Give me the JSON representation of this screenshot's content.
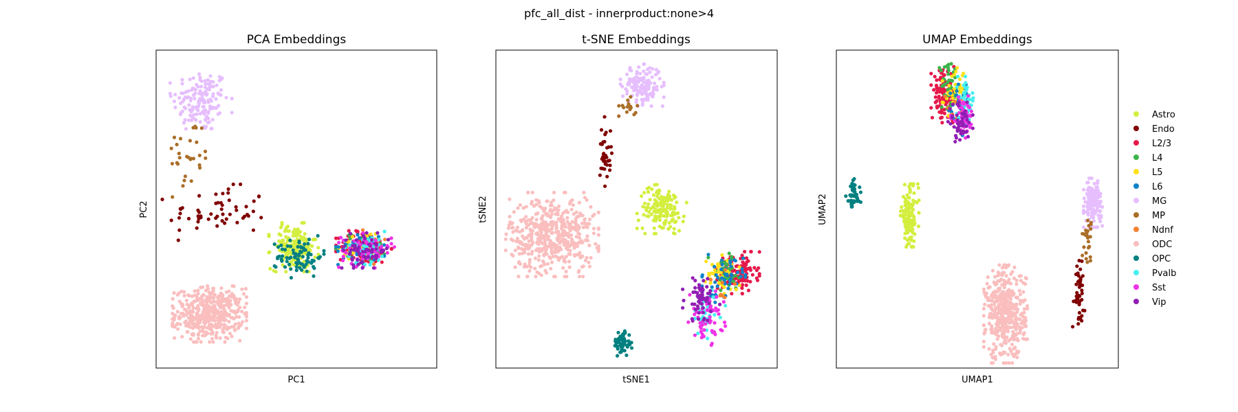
{
  "figure": {
    "suptitle": "pfc_all_dist - innerproduct:none>4"
  },
  "legend": {
    "placement": "right",
    "entries": [
      {
        "name": "Astro",
        "color": "#d4ee3f"
      },
      {
        "name": "Endo",
        "color": "#800000"
      },
      {
        "name": "L2/3",
        "color": "#e6194b"
      },
      {
        "name": "L4",
        "color": "#3cb44b"
      },
      {
        "name": "L5",
        "color": "#ffe119"
      },
      {
        "name": "L6",
        "color": "#0f82c8"
      },
      {
        "name": "MG",
        "color": "#e6befe"
      },
      {
        "name": "MP",
        "color": "#aa6e28"
      },
      {
        "name": "Ndnf",
        "color": "#f58231"
      },
      {
        "name": "ODC",
        "color": "#fabebe"
      },
      {
        "name": "OPC",
        "color": "#008080"
      },
      {
        "name": "Pvalb",
        "color": "#46f0f0"
      },
      {
        "name": "Sst",
        "color": "#f032e6"
      },
      {
        "name": "Vip",
        "color": "#911eb4"
      }
    ]
  },
  "chart_data": [
    {
      "type": "scatter",
      "title": "PCA Embeddings",
      "xlabel": "PC1",
      "ylabel": "PC2",
      "ticks": "none",
      "grid": false,
      "xlim": [
        0,
        100
      ],
      "ylim": [
        0,
        100
      ],
      "clusters": [
        {
          "label": "MG",
          "n": 150,
          "cx": 16,
          "cy": 84,
          "sx": 5,
          "sy": 5
        },
        {
          "label": "MP",
          "n": 30,
          "cx": 12,
          "cy": 67,
          "sx": 4,
          "sy": 6
        },
        {
          "label": "Endo",
          "n": 55,
          "cx": 22,
          "cy": 49,
          "sx": 9,
          "sy": 4
        },
        {
          "label": "ODC",
          "n": 450,
          "cx": 19,
          "cy": 17,
          "sx": 6,
          "sy": 4
        },
        {
          "label": "Astro",
          "n": 170,
          "cx": 49,
          "cy": 38,
          "sx": 4,
          "sy": 3.5
        },
        {
          "label": "OPC",
          "n": 80,
          "cx": 51,
          "cy": 35,
          "sx": 4,
          "sy": 3
        },
        {
          "label": "L2/3",
          "n": 130,
          "cx": 74,
          "cy": 38,
          "sx": 4.5,
          "sy": 2.5
        },
        {
          "label": "L4",
          "n": 30,
          "cx": 74,
          "cy": 38,
          "sx": 4.5,
          "sy": 2.5
        },
        {
          "label": "L5",
          "n": 30,
          "cx": 75,
          "cy": 38,
          "sx": 4.5,
          "sy": 2.5
        },
        {
          "label": "L6",
          "n": 50,
          "cx": 74,
          "cy": 38,
          "sx": 4.5,
          "sy": 2.5
        },
        {
          "label": "Ndnf",
          "n": 6,
          "cx": 76,
          "cy": 38,
          "sx": 4,
          "sy": 2.5
        },
        {
          "label": "Pvalb",
          "n": 40,
          "cx": 75,
          "cy": 38,
          "sx": 4.5,
          "sy": 2.5
        },
        {
          "label": "Sst",
          "n": 60,
          "cx": 75,
          "cy": 37,
          "sx": 4.5,
          "sy": 2.5
        },
        {
          "label": "Vip",
          "n": 60,
          "cx": 74,
          "cy": 37,
          "sx": 4.5,
          "sy": 2.5
        }
      ]
    },
    {
      "type": "scatter",
      "title": "t-SNE Embeddings",
      "xlabel": "tSNE1",
      "ylabel": "tSNE2",
      "ticks": "none",
      "grid": false,
      "xlim": [
        0,
        100
      ],
      "ylim": [
        0,
        100
      ],
      "clusters": [
        {
          "label": "MG",
          "n": 150,
          "cx": 52,
          "cy": 89,
          "sx": 3.5,
          "sy": 3
        },
        {
          "label": "MP",
          "n": 15,
          "cx": 47,
          "cy": 82,
          "sx": 1.5,
          "sy": 1.5
        },
        {
          "label": "Endo",
          "n": 35,
          "cx": 39,
          "cy": 68,
          "sx": 1,
          "sy": 5
        },
        {
          "label": "ODC",
          "n": 500,
          "cx": 20,
          "cy": 42,
          "sx": 7.5,
          "sy": 6
        },
        {
          "label": "Astro",
          "n": 150,
          "cx": 59,
          "cy": 50,
          "sx": 4,
          "sy": 3.5
        },
        {
          "label": "OPC",
          "n": 60,
          "cx": 45,
          "cy": 8,
          "sx": 1.5,
          "sy": 2
        },
        {
          "label": "L2/3",
          "n": 120,
          "cx": 86,
          "cy": 30,
          "sx": 3.5,
          "sy": 3
        },
        {
          "label": "L4",
          "n": 40,
          "cx": 82,
          "cy": 30,
          "sx": 3,
          "sy": 3
        },
        {
          "label": "L5",
          "n": 40,
          "cx": 80,
          "cy": 30,
          "sx": 3,
          "sy": 3
        },
        {
          "label": "L6",
          "n": 50,
          "cx": 81,
          "cy": 28,
          "sx": 3.5,
          "sy": 3.5
        },
        {
          "label": "Ndnf",
          "n": 8,
          "cx": 80,
          "cy": 25,
          "sx": 3,
          "sy": 3
        },
        {
          "label": "Pvalb",
          "n": 40,
          "cx": 75,
          "cy": 17,
          "sx": 3,
          "sy": 3.5
        },
        {
          "label": "Sst",
          "n": 60,
          "cx": 75,
          "cy": 16,
          "sx": 3,
          "sy": 4
        },
        {
          "label": "Vip",
          "n": 60,
          "cx": 73,
          "cy": 22,
          "sx": 3,
          "sy": 3.5
        }
      ]
    },
    {
      "type": "scatter",
      "title": "UMAP Embeddings",
      "xlabel": "UMAP1",
      "ylabel": "UMAP2",
      "ticks": "none",
      "grid": false,
      "xlim": [
        0,
        100
      ],
      "ylim": [
        0,
        100
      ],
      "clusters": [
        {
          "label": "OPC",
          "n": 45,
          "cx": 6,
          "cy": 54,
          "sx": 1.2,
          "sy": 2.5
        },
        {
          "label": "Astro",
          "n": 120,
          "cx": 26,
          "cy": 48,
          "sx": 1.5,
          "sy": 4.5
        },
        {
          "label": "L2/3",
          "n": 120,
          "cx": 38,
          "cy": 86,
          "sx": 2,
          "sy": 4
        },
        {
          "label": "L4",
          "n": 40,
          "cx": 40,
          "cy": 88,
          "sx": 2,
          "sy": 3.5
        },
        {
          "label": "L5",
          "n": 40,
          "cx": 42,
          "cy": 87,
          "sx": 2,
          "sy": 3.5
        },
        {
          "label": "L6",
          "n": 40,
          "cx": 44,
          "cy": 82,
          "sx": 2,
          "sy": 4
        },
        {
          "label": "Ndnf",
          "n": 8,
          "cx": 43,
          "cy": 82,
          "sx": 2,
          "sy": 3
        },
        {
          "label": "Pvalb",
          "n": 40,
          "cx": 46,
          "cy": 84,
          "sx": 1.5,
          "sy": 3.5
        },
        {
          "label": "Sst",
          "n": 50,
          "cx": 45,
          "cy": 79,
          "sx": 2,
          "sy": 3
        },
        {
          "label": "Vip",
          "n": 50,
          "cx": 44,
          "cy": 77,
          "sx": 2,
          "sy": 3
        },
        {
          "label": "MG",
          "n": 150,
          "cx": 91,
          "cy": 52,
          "sx": 1.5,
          "sy": 3.5
        },
        {
          "label": "MP",
          "n": 25,
          "cx": 89,
          "cy": 41,
          "sx": 0.8,
          "sy": 3.5
        },
        {
          "label": "Endo",
          "n": 45,
          "cx": 86,
          "cy": 24,
          "sx": 1,
          "sy": 5
        },
        {
          "label": "ODC",
          "n": 450,
          "cx": 60,
          "cy": 17,
          "sx": 3.5,
          "sy": 7
        }
      ]
    }
  ]
}
